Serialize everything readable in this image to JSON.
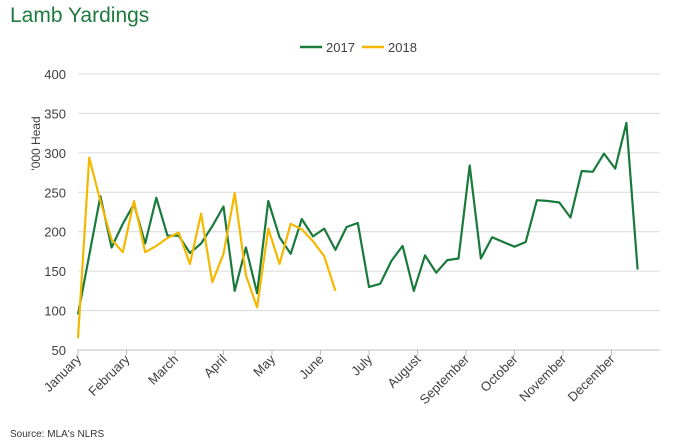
{
  "title": "Lamb Yardings",
  "source": "Source: MLA's NLRS",
  "chart_data": {
    "type": "line",
    "title": "Lamb Yardings",
    "ylabel": "'000 Head",
    "xlabel": "",
    "ylim": [
      50,
      400
    ],
    "yticks": [
      50,
      100,
      150,
      200,
      250,
      300,
      350,
      400
    ],
    "grid": true,
    "legend_position": "top-center",
    "x_tick_labels": [
      "January",
      "February",
      "March",
      "April",
      "May",
      "June",
      "July",
      "August",
      "September",
      "October",
      "November",
      "December"
    ],
    "weeks_per_year": 52,
    "series": [
      {
        "name": "2017",
        "color": "#1a7a3c",
        "values": [
          95,
          170,
          245,
          180,
          210,
          235,
          185,
          243,
          195,
          195,
          173,
          185,
          207,
          232,
          125,
          180,
          122,
          239,
          193,
          172,
          216,
          194,
          204,
          177,
          206,
          211,
          130,
          134,
          163,
          182,
          125,
          170,
          148,
          164,
          166,
          284,
          166,
          193,
          187,
          181,
          187,
          240,
          239,
          237,
          218,
          277,
          276,
          299,
          280,
          338,
          152
        ]
      },
      {
        "name": "2018",
        "color": "#f5b800",
        "values": [
          65,
          294,
          239,
          190,
          174,
          239,
          174,
          182,
          192,
          199,
          159,
          223,
          136,
          172,
          249,
          145,
          104,
          204,
          159,
          210,
          203,
          188,
          169,
          125
        ]
      }
    ]
  }
}
